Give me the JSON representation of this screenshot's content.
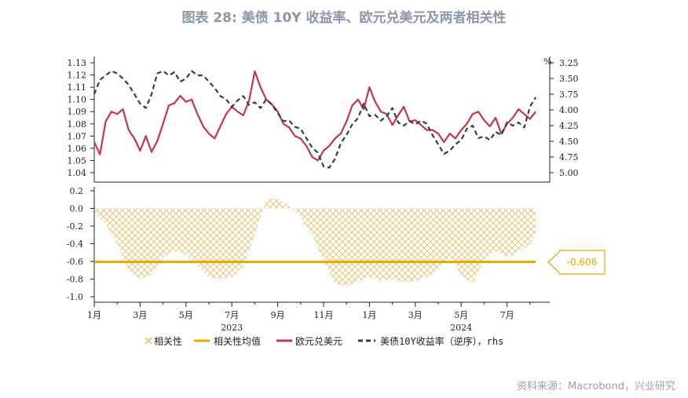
{
  "header": {
    "title": "图表 28: 美债 10Y 收益率、欧元兑美元及两者相关性",
    "source": "资料来源：Macrobond，兴业研究"
  },
  "colors": {
    "eurusd": "#c8354a",
    "treasury": "#2f3e5c",
    "correlation": "#f0c27a",
    "correlation_avg": "#e8a800"
  },
  "chart_data": [
    {
      "type": "line",
      "panel": "top",
      "x_range": [
        "2023-01",
        "2024-08"
      ],
      "left_axis": {
        "ylim": [
          1.04,
          1.13
        ],
        "ticks": [
          "1.13",
          "1.12",
          "1.11",
          "1.10",
          "1.09",
          "1.08",
          "1.07",
          "1.06",
          "1.05",
          "1.04"
        ]
      },
      "right_axis": {
        "unit": "%",
        "ylim": [
          5.0,
          3.25
        ],
        "inverted": true,
        "ticks": [
          "3.25",
          "3.50",
          "3.75",
          "4.00",
          "4.25",
          "4.50",
          "4.75",
          "5.00"
        ]
      },
      "series": [
        {
          "name": "欧元兑美元",
          "axis": "left",
          "x": [
            0,
            0.25,
            0.5,
            0.75,
            1,
            1.25,
            1.5,
            1.75,
            2,
            2.25,
            2.5,
            2.75,
            3,
            3.25,
            3.5,
            3.75,
            4,
            4.25,
            4.5,
            4.75,
            5,
            5.25,
            5.5,
            5.75,
            6,
            6.25,
            6.5,
            6.75,
            7,
            7.25,
            7.5,
            7.75,
            8,
            8.25,
            8.5,
            8.75,
            9,
            9.25,
            9.5,
            9.75,
            10,
            10.25,
            10.5,
            10.75,
            11,
            11.25,
            11.5,
            11.75,
            12,
            12.25,
            12.5,
            12.75,
            13,
            13.25,
            13.5,
            13.75,
            14,
            14.25,
            14.5,
            14.75,
            15,
            15.25,
            15.5,
            15.75,
            16,
            16.25,
            16.5,
            16.75,
            17,
            17.25,
            17.5,
            17.75,
            18,
            18.25,
            18.5,
            18.75,
            19,
            19.25
          ],
          "values": [
            1.065,
            1.055,
            1.082,
            1.09,
            1.088,
            1.092,
            1.075,
            1.068,
            1.058,
            1.07,
            1.057,
            1.066,
            1.08,
            1.095,
            1.097,
            1.103,
            1.098,
            1.1,
            1.088,
            1.078,
            1.072,
            1.068,
            1.078,
            1.088,
            1.094,
            1.09,
            1.087,
            1.099,
            1.123,
            1.11,
            1.1,
            1.096,
            1.09,
            1.08,
            1.077,
            1.07,
            1.068,
            1.062,
            1.053,
            1.05,
            1.058,
            1.062,
            1.068,
            1.072,
            1.082,
            1.095,
            1.1,
            1.092,
            1.11,
            1.098,
            1.09,
            1.088,
            1.079,
            1.087,
            1.094,
            1.082,
            1.083,
            1.079,
            1.075,
            1.075,
            1.072,
            1.065,
            1.072,
            1.068,
            1.075,
            1.08,
            1.088,
            1.09,
            1.083,
            1.078,
            1.085,
            1.072,
            1.08,
            1.085,
            1.092,
            1.088,
            1.084,
            1.09
          ]
        },
        {
          "name": "美债10Y收益率（逆序）",
          "axis": "right",
          "x": [
            0,
            0.25,
            0.5,
            0.75,
            1,
            1.25,
            1.5,
            1.75,
            2,
            2.25,
            2.5,
            2.75,
            3,
            3.25,
            3.5,
            3.75,
            4,
            4.25,
            4.5,
            4.75,
            5,
            5.25,
            5.5,
            5.75,
            6,
            6.25,
            6.5,
            6.75,
            7,
            7.25,
            7.5,
            7.75,
            8,
            8.25,
            8.5,
            8.75,
            9,
            9.25,
            9.5,
            9.75,
            10,
            10.25,
            10.5,
            10.75,
            11,
            11.25,
            11.5,
            11.75,
            12,
            12.25,
            12.5,
            12.75,
            13,
            13.25,
            13.5,
            13.75,
            14,
            14.25,
            14.5,
            14.75,
            15,
            15.25,
            15.5,
            15.75,
            16,
            16.25,
            16.5,
            16.75,
            17,
            17.25,
            17.5,
            17.75,
            18,
            18.25,
            18.5,
            18.75,
            19,
            19.25
          ],
          "values": [
            3.75,
            3.52,
            3.45,
            3.38,
            3.42,
            3.5,
            3.6,
            3.75,
            3.9,
            3.97,
            3.75,
            3.42,
            3.38,
            3.45,
            3.4,
            3.55,
            3.5,
            3.38,
            3.45,
            3.45,
            3.55,
            3.65,
            3.78,
            3.83,
            3.95,
            3.85,
            3.78,
            3.92,
            3.88,
            3.97,
            3.83,
            3.92,
            4.05,
            4.18,
            4.17,
            4.27,
            4.3,
            4.45,
            4.6,
            4.68,
            4.9,
            4.92,
            4.78,
            4.53,
            4.4,
            4.23,
            4.13,
            3.9,
            4.1,
            4.08,
            4.17,
            4.1,
            3.97,
            4.2,
            4.25,
            4.18,
            4.23,
            4.17,
            4.22,
            4.4,
            4.55,
            4.7,
            4.65,
            4.55,
            4.48,
            4.3,
            4.25,
            4.45,
            4.42,
            4.48,
            4.35,
            4.4,
            4.2,
            4.25,
            4.2,
            4.28,
            3.95,
            3.8
          ]
        }
      ]
    },
    {
      "type": "area",
      "panel": "bottom",
      "x_range": [
        "2023-01",
        "2024-08"
      ],
      "ylim": [
        -1.0,
        0.2
      ],
      "yticks": [
        "0.2",
        "0.0",
        "-0.2",
        "-0.4",
        "-0.6",
        "-0.8",
        "-1.0"
      ],
      "series": [
        {
          "name": "相关性",
          "x": [
            0,
            0.5,
            1,
            1.5,
            2,
            2.5,
            3,
            3.5,
            4,
            4.5,
            5,
            5.5,
            6,
            6.5,
            7,
            7.5,
            8,
            8.5,
            9,
            9.5,
            10,
            10.5,
            11,
            11.5,
            12,
            12.5,
            13,
            13.5,
            14,
            14.5,
            15,
            15.5,
            16,
            16.5,
            17,
            17.5,
            18,
            18.5,
            19,
            19.25
          ],
          "values": [
            -0.05,
            -0.18,
            -0.4,
            -0.7,
            -0.8,
            -0.75,
            -0.55,
            -0.48,
            -0.52,
            -0.65,
            -0.78,
            -0.8,
            -0.78,
            -0.65,
            -0.3,
            0.1,
            0.12,
            0.02,
            -0.1,
            -0.3,
            -0.6,
            -0.85,
            -0.88,
            -0.82,
            -0.78,
            -0.82,
            -0.8,
            -0.84,
            -0.82,
            -0.78,
            -0.7,
            -0.55,
            -0.75,
            -0.85,
            -0.58,
            -0.48,
            -0.55,
            -0.5,
            -0.4,
            -0.3
          ]
        },
        {
          "name": "相关性均值",
          "value": -0.606
        }
      ],
      "annotation": "-0.606"
    }
  ],
  "x_axis": {
    "tick_labels": [
      "1月",
      "3月",
      "5月",
      "7月",
      "9月",
      "11月",
      "1月",
      "3月",
      "5月",
      "7月"
    ],
    "year_labels": [
      "2023",
      "2024"
    ]
  },
  "legend": {
    "items": [
      "相关性",
      "相关性均值",
      "欧元兑美元",
      "美债10Y收益率（逆序），rhs"
    ]
  }
}
